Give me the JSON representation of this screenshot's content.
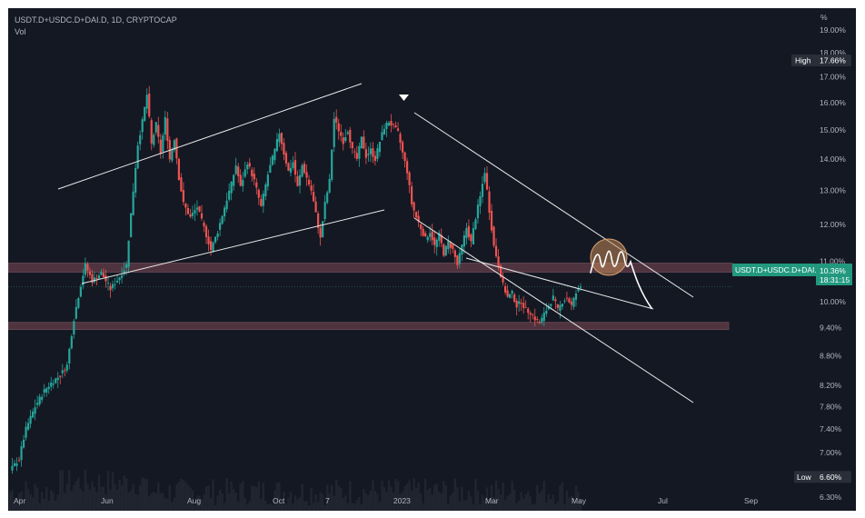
{
  "header": {
    "title": "USDT.D+USDC.D+DAI.D, 1D, CRYPTOCAP",
    "volume_label": "Vol"
  },
  "colors": {
    "background": "#141823",
    "up": "#26a69a",
    "down": "#ef5350",
    "zone": "#5a3a45",
    "price_badge": "#22997f",
    "drawing": "#e8e8e8",
    "highlight": "#c28b5a"
  },
  "chart_data": {
    "type": "candlestick",
    "y_scale": "log",
    "yunit": "%",
    "ylim": [
      6.1,
      20.0
    ],
    "y_ticks": [
      "19.00%",
      "18.00%",
      "17.00%",
      "16.00%",
      "15.00%",
      "14.00%",
      "13.00%",
      "12.00%",
      "11.00%",
      "10.00%",
      "9.40%",
      "8.80%",
      "8.20%",
      "7.80%",
      "7.40%",
      "7.00%",
      "6.30%"
    ],
    "x_tick_labels": [
      "Apr",
      "Jun",
      "Aug",
      "Oct",
      "7",
      "2023",
      "Mar",
      "May",
      "Jul",
      "Sep"
    ],
    "high_label": "High",
    "high_value": "17.66%",
    "low_label": "Low",
    "low_value": "6.60%",
    "last_price_label": "USDT.D+USDC.D+DAI.D",
    "last_price_value": "10.36%",
    "countdown": "18:31:15",
    "support_zones": [
      {
        "from": 10.72,
        "to": 10.95
      },
      {
        "from": 9.36,
        "to": 9.52
      }
    ],
    "price_path": [
      [
        0,
        6.7
      ],
      [
        4,
        6.9
      ],
      [
        7,
        7.4
      ],
      [
        11,
        7.8
      ],
      [
        15,
        8.1
      ],
      [
        18,
        8.25
      ],
      [
        22,
        8.4
      ],
      [
        25,
        8.6
      ],
      [
        28,
        9.6
      ],
      [
        31,
        10.4
      ],
      [
        33,
        10.9
      ],
      [
        36,
        10.5
      ],
      [
        40,
        10.7
      ],
      [
        44,
        10.3
      ],
      [
        48,
        10.6
      ],
      [
        51,
        10.9
      ],
      [
        54,
        13.0
      ],
      [
        56,
        14.5
      ],
      [
        58,
        15.3
      ],
      [
        60,
        16.3
      ],
      [
        62,
        14.5
      ],
      [
        64,
        15.2
      ],
      [
        66,
        14.2
      ],
      [
        68,
        15.4
      ],
      [
        70,
        14.0
      ],
      [
        72,
        14.7
      ],
      [
        74,
        13.4
      ],
      [
        76,
        12.6
      ],
      [
        79,
        12.2
      ],
      [
        82,
        12.5
      ],
      [
        85,
        11.9
      ],
      [
        88,
        11.3
      ],
      [
        91,
        11.8
      ],
      [
        94,
        12.5
      ],
      [
        97,
        13.2
      ],
      [
        99,
        13.8
      ],
      [
        101,
        13.1
      ],
      [
        104,
        13.9
      ],
      [
        107,
        13.3
      ],
      [
        110,
        12.5
      ],
      [
        113,
        13.5
      ],
      [
        116,
        14.3
      ],
      [
        118,
        14.9
      ],
      [
        120,
        14.2
      ],
      [
        122,
        13.6
      ],
      [
        124,
        13.9
      ],
      [
        126,
        13.1
      ],
      [
        128,
        13.8
      ],
      [
        130,
        13.4
      ],
      [
        132,
        13.0
      ],
      [
        134,
        12.3
      ],
      [
        136,
        11.6
      ],
      [
        138,
        12.6
      ],
      [
        140,
        13.3
      ],
      [
        142,
        15.4
      ],
      [
        144,
        15.0
      ],
      [
        146,
        14.6
      ],
      [
        148,
        15.0
      ],
      [
        150,
        14.3
      ],
      [
        152,
        14.0
      ],
      [
        154,
        14.7
      ],
      [
        156,
        14.1
      ],
      [
        158,
        14.3
      ],
      [
        160,
        14.0
      ],
      [
        162,
        14.6
      ],
      [
        164,
        15.1
      ],
      [
        166,
        15.3
      ],
      [
        168,
        15.1
      ],
      [
        170,
        14.9
      ],
      [
        172,
        14.2
      ],
      [
        174,
        13.6
      ],
      [
        176,
        12.6
      ],
      [
        178,
        12.2
      ],
      [
        180,
        11.9
      ],
      [
        182,
        11.6
      ],
      [
        184,
        11.8
      ],
      [
        186,
        11.4
      ],
      [
        188,
        11.7
      ],
      [
        190,
        11.2
      ],
      [
        192,
        11.5
      ],
      [
        194,
        11.3
      ],
      [
        196,
        10.9
      ],
      [
        198,
        11.4
      ],
      [
        200,
        11.9
      ],
      [
        202,
        11.5
      ],
      [
        204,
        12.2
      ],
      [
        206,
        12.8
      ],
      [
        208,
        13.6
      ],
      [
        210,
        12.4
      ],
      [
        212,
        11.4
      ],
      [
        214,
        10.9
      ],
      [
        216,
        10.4
      ],
      [
        218,
        10.1
      ],
      [
        220,
        10.2
      ],
      [
        222,
        9.9
      ],
      [
        224,
        10.0
      ],
      [
        226,
        9.8
      ],
      [
        228,
        9.75
      ],
      [
        230,
        9.6
      ],
      [
        232,
        9.5
      ],
      [
        234,
        9.7
      ],
      [
        236,
        9.9
      ],
      [
        238,
        10.1
      ],
      [
        240,
        9.8
      ],
      [
        242,
        10.0
      ],
      [
        244,
        10.1
      ],
      [
        246,
        9.9
      ],
      [
        248,
        10.2
      ],
      [
        250,
        10.36
      ]
    ]
  }
}
